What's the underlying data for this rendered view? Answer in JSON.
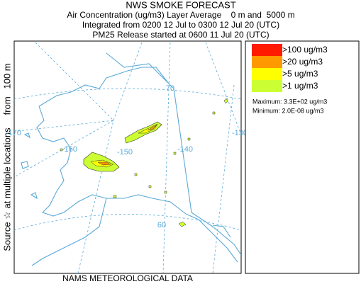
{
  "header": {
    "title": "NWS SMOKE FORECAST",
    "lines": [
      "Air Concentration (ug/m3) Layer Average    0 m and  5000 m",
      "Integrated from 0200 12 Jul to 0300 12 Jul 20 (UTC)",
      "PM25 Release started at 0600 11 Jul 20 (UTC)"
    ]
  },
  "side_label": "Source ☆ at multiple locations     from   100 m",
  "footer": "NAMS METEOROLOGICAL DATA",
  "legend": {
    "items": [
      {
        "label": ">100 ug/m3",
        "color": "#ff1a00"
      },
      {
        "label": ">20 ug/m3",
        "color": "#ff9900"
      },
      {
        "label": ">5 ug/m3",
        "color": "#ffff00"
      },
      {
        "label": ">1 ug/m3",
        "color": "#ccff33"
      }
    ],
    "maximum": "Maximum: 3.3E+02 ug/m3",
    "minimum": "Minimum: 2.0E-08 ug/m3"
  },
  "map": {
    "labels": [
      "70",
      "-170",
      "-160",
      "-150",
      "-140",
      "-130",
      "60"
    ]
  }
}
